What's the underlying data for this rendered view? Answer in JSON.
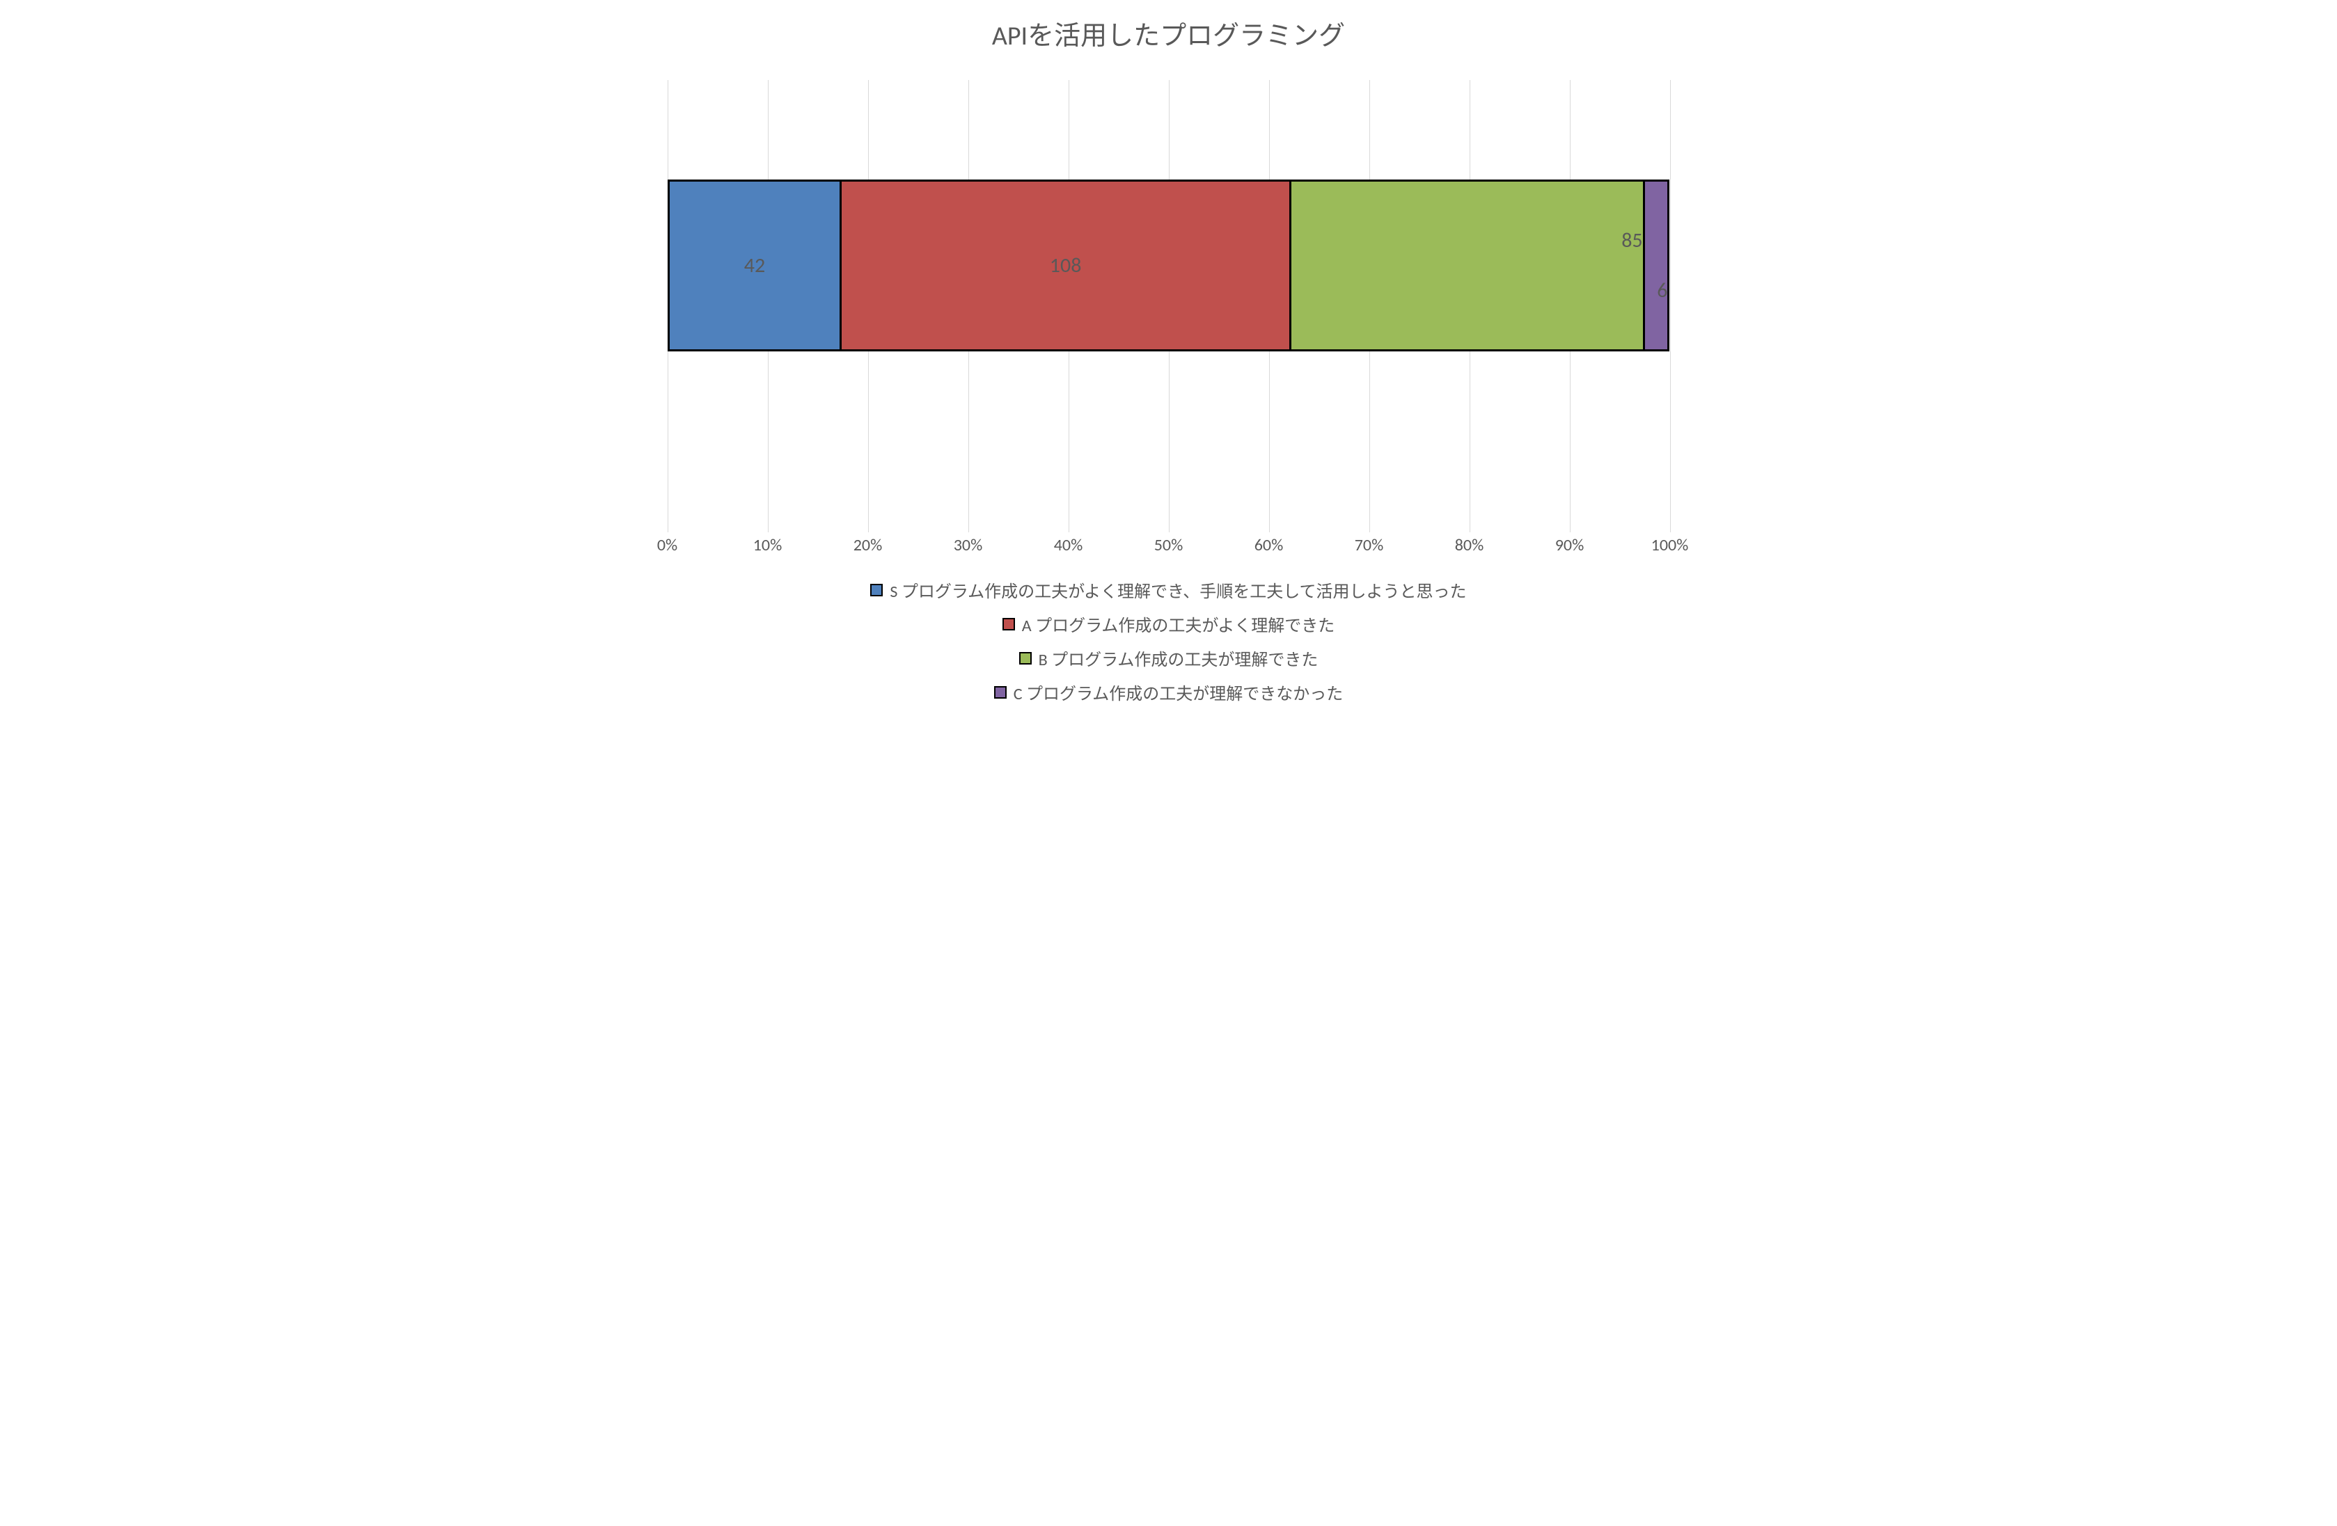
{
  "chart": {
    "type": "stacked-bar-100",
    "title": "APIを活用したプログラミング",
    "title_fontsize": 38,
    "title_color": "#595959",
    "background_color": "#ffffff",
    "grid_color": "#d9d9d9",
    "axis": {
      "xmin": 0,
      "xmax": 100,
      "tick_step": 10,
      "tick_suffix": "%",
      "label_fontsize": 24,
      "label_color": "#595959"
    },
    "bar": {
      "border_color": "#000000",
      "border_width": 3
    },
    "segments": [
      {
        "key": "S",
        "value": 42,
        "color": "#4f81bd",
        "label_pos": "center",
        "legend": "S   プログラム作成の工夫がよく理解でき、手順を工夫して活用しようと思った"
      },
      {
        "key": "A",
        "value": 108,
        "color": "#c0504d",
        "label_pos": "center",
        "legend": "A   プログラム作成の工夫がよく理解できた"
      },
      {
        "key": "B",
        "value": 85,
        "color": "#9bbb59",
        "label_pos": "above",
        "legend": "B   プログラム作成の工夫が理解できた"
      },
      {
        "key": "C",
        "value": 6,
        "color": "#8064a2",
        "label_pos": "below",
        "legend": "C   プログラム作成の工夫が理解できなかった"
      }
    ],
    "value_fontsize": 30,
    "value_color": "#595959",
    "legend_fontsize": 24,
    "legend_color": "#595959",
    "swatch_border": "#000000",
    "outer_border_only_segments": true
  }
}
